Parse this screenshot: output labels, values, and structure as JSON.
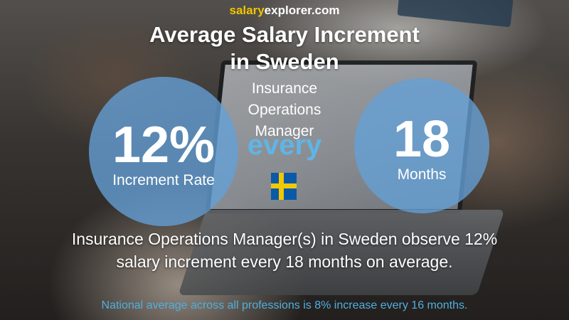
{
  "brand": {
    "part1": "salary",
    "part2": "explorer.com"
  },
  "title": {
    "line1": "Average Salary Increment",
    "line2": "in Sweden"
  },
  "increment": {
    "value": "12%",
    "label": "Increment Rate"
  },
  "job": {
    "line1": "Insurance",
    "line2": "Operations",
    "line3": "Manager"
  },
  "every_label": "every",
  "period": {
    "value": "18",
    "label": "Months"
  },
  "flag": {
    "icon": "sweden-flag-icon",
    "blue": "#0a5aa8",
    "yellow": "#f2c800"
  },
  "description": {
    "line1": "Insurance Operations Manager(s) in Sweden observe 12%",
    "line2": "salary increment every 18 months on average."
  },
  "footer": "National average across all professions is 8% increase every 16 months.",
  "colors": {
    "accent_blue": "#5fb5e6",
    "circle": "#64a0d7",
    "brand_yellow": "#f2c500"
  }
}
